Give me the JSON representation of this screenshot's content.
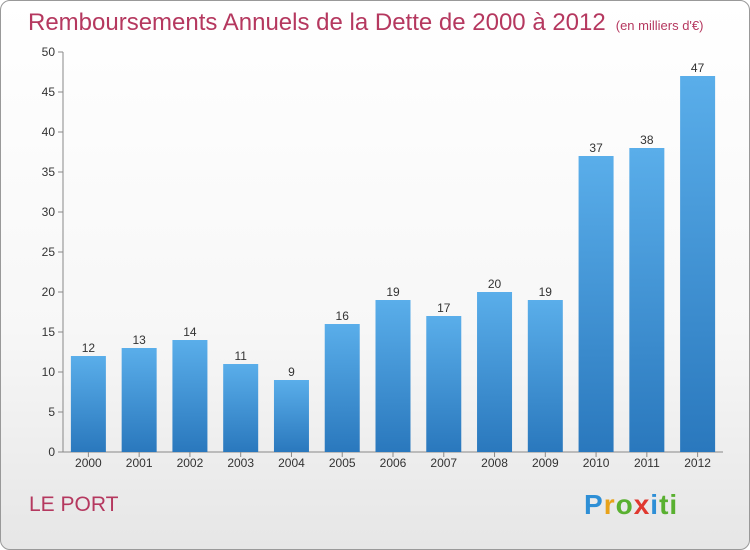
{
  "chart_data": {
    "type": "bar",
    "title": "Remboursements Annuels de la Dette de 2000 à 2012",
    "subtitle": "(en milliers d'€)",
    "categories": [
      "2000",
      "2001",
      "2002",
      "2003",
      "2004",
      "2005",
      "2006",
      "2007",
      "2008",
      "2009",
      "2010",
      "2011",
      "2012"
    ],
    "values": [
      12,
      13,
      14,
      11,
      9,
      16,
      19,
      17,
      20,
      19,
      37,
      38,
      47
    ],
    "ylim": [
      0,
      50
    ],
    "yticks": [
      0,
      5,
      10,
      15,
      20,
      25,
      30,
      35,
      40,
      45,
      50
    ],
    "grid": false,
    "bar_color": "#3a8fd6"
  },
  "footer": {
    "commune": "LE PORT",
    "logo_letters": [
      "P",
      "r",
      "o",
      "x",
      "i",
      "ti"
    ]
  }
}
